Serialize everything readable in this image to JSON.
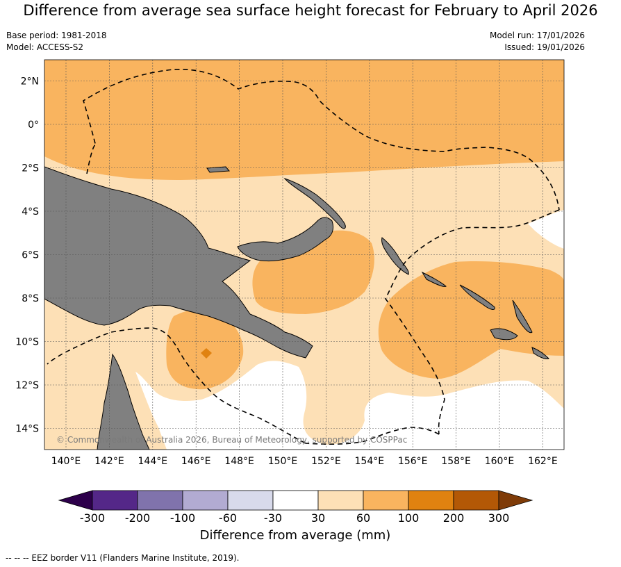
{
  "title": "Difference from average sea surface height forecast for February to April 2026",
  "meta": {
    "base_period": "Base period: 1981-2018",
    "model": "Model: ACCESS-S2",
    "model_run": "Model run: 17/01/2026",
    "issued": "Issued: 19/01/2026"
  },
  "map": {
    "lat_ticks": [
      "2°N",
      "0°",
      "2°S",
      "4°S",
      "6°S",
      "8°S",
      "10°S",
      "12°S",
      "14°S"
    ],
    "lon_ticks": [
      "140°E",
      "142°E",
      "144°E",
      "146°E",
      "148°E",
      "150°E",
      "152°E",
      "154°E",
      "156°E",
      "158°E",
      "160°E",
      "162°E"
    ],
    "credit": "© Commonwealth of Australia 2026, Bureau of Meteorology, supported by COSPPac",
    "colors": {
      "land": "#808080",
      "c30_60": "#fde0b6",
      "c60_100": "#f9b45f",
      "c100_200": "#e08210",
      "ocean_neutral": "#ffffff"
    }
  },
  "colorbar": {
    "tick_labels": [
      "-300",
      "-200",
      "-100",
      "-60",
      "-30",
      "30",
      "60",
      "100",
      "200",
      "300"
    ],
    "colors": [
      "#2d004b",
      "#542788",
      "#8073ac",
      "#b2abd2",
      "#d8daeb",
      "#ffffff",
      "#fde0b6",
      "#f9b45f",
      "#e08210",
      "#b35806",
      "#7f3b08"
    ],
    "label": "Difference from average (mm)"
  },
  "footnote": "--  --  -- EEZ border V11 (Flanders Marine Institute, 2019)."
}
